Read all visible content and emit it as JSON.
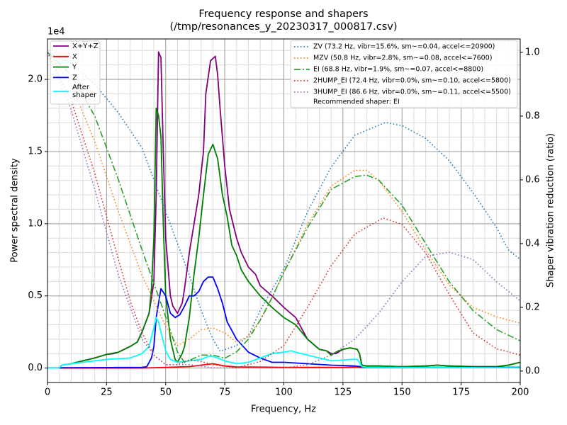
{
  "chart_data": {
    "type": "line",
    "title": "Frequency response and shapers",
    "subtitle": "(/tmp/resonances_y_20230317_000817.csv)",
    "x_label": "Frequency, Hz",
    "y_label": "Power spectral density",
    "y2_label": "Shaper vibration reduction (ratio)",
    "y_offset_label": "1e4",
    "xlim": [
      0,
      200
    ],
    "xticks": [
      0,
      25,
      50,
      75,
      100,
      125,
      150,
      175,
      200
    ],
    "ylim": [
      -1000,
      22800
    ],
    "yticks": [
      {
        "value": 0,
        "label": "0.0"
      },
      {
        "value": 5000,
        "label": "0.5"
      },
      {
        "value": 10000,
        "label": "1.0"
      },
      {
        "value": 15000,
        "label": "1.5"
      },
      {
        "value": 20000,
        "label": "2.0"
      }
    ],
    "y2lim": [
      -0.036,
      1.042
    ],
    "y2ticks": [
      {
        "value": 0,
        "label": "0.0"
      },
      0.2,
      0.4,
      0.6,
      0.8,
      {
        "value": 1,
        "label": "1.0"
      }
    ],
    "grid": true,
    "minor_grid": true,
    "legend_note": "Recommended shaper: EI",
    "series": [
      {
        "name": "X+Y+Z",
        "color": "#800080",
        "style": "solid",
        "x": [
          0,
          5,
          6,
          10,
          15,
          20,
          25,
          28,
          30,
          35,
          38,
          40,
          43,
          45,
          46,
          47,
          48,
          49,
          50,
          51,
          52,
          53,
          55,
          57,
          58,
          60,
          62,
          64,
          66,
          67,
          69,
          71,
          72,
          73,
          75,
          77,
          80,
          82,
          85,
          88,
          90,
          95,
          100,
          105,
          110,
          115,
          118,
          120,
          122,
          125,
          128,
          131,
          132,
          133,
          135,
          140,
          150,
          160,
          165,
          170,
          180,
          190,
          195,
          200
        ],
        "values": [
          0,
          0,
          200,
          300,
          500,
          700,
          950,
          1000,
          1100,
          1500,
          1800,
          2500,
          3800,
          6000,
          12000,
          21900,
          21500,
          15000,
          9000,
          7000,
          5000,
          4300,
          3800,
          4500,
          5500,
          8000,
          10000,
          12000,
          15000,
          19000,
          21300,
          21600,
          20300,
          18000,
          14000,
          11000,
          9000,
          8000,
          7000,
          6500,
          5700,
          5000,
          4200,
          3500,
          2000,
          1300,
          1200,
          1000,
          1000,
          1300,
          1400,
          1300,
          1000,
          200,
          150,
          150,
          100,
          150,
          200,
          150,
          100,
          100,
          200,
          400
        ]
      },
      {
        "name": "X",
        "color": "#ff0000",
        "style": "solid",
        "x": [
          0,
          40,
          50,
          60,
          65,
          70,
          75,
          80,
          100,
          125,
          130,
          135,
          200
        ],
        "values": [
          0,
          0,
          50,
          100,
          200,
          300,
          150,
          80,
          50,
          50,
          80,
          30,
          50
        ]
      },
      {
        "name": "Y",
        "color": "#008000",
        "style": "solid",
        "x": [
          0,
          5,
          6,
          10,
          15,
          20,
          25,
          30,
          35,
          38,
          40,
          43,
          44,
          45,
          46,
          47,
          48,
          49,
          50,
          52,
          54,
          55,
          57,
          58,
          60,
          62,
          64,
          66,
          68,
          70,
          72,
          74,
          76,
          78,
          80,
          82,
          85,
          90,
          95,
          100,
          105,
          110,
          115,
          118,
          120,
          122,
          125,
          128,
          131,
          132,
          133,
          135,
          140,
          150,
          160,
          165,
          170,
          180,
          190,
          195,
          200
        ],
        "values": [
          0,
          0,
          200,
          300,
          500,
          700,
          950,
          1100,
          1500,
          1800,
          2500,
          3800,
          5500,
          9000,
          18000,
          17500,
          16000,
          10000,
          5000,
          2000,
          600,
          400,
          1000,
          1500,
          3500,
          6500,
          9000,
          12000,
          14800,
          15500,
          14500,
          12000,
          10500,
          8500,
          7800,
          6800,
          6000,
          5000,
          4200,
          3500,
          3000,
          2000,
          1300,
          1200,
          900,
          1100,
          1300,
          1400,
          1300,
          1000,
          200,
          150,
          150,
          100,
          150,
          200,
          150,
          100,
          100,
          200,
          400
        ]
      },
      {
        "name": "Z",
        "color": "#0000ff",
        "style": "solid",
        "x": [
          0,
          5,
          6,
          40,
          42,
          44,
          45,
          46,
          47,
          48,
          50,
          52,
          54,
          56,
          58,
          60,
          62,
          64,
          66,
          68,
          70,
          72,
          74,
          76,
          80,
          85,
          90,
          95,
          100,
          110,
          120,
          130,
          135,
          200
        ],
        "values": [
          0,
          0,
          20,
          50,
          100,
          700,
          1500,
          3500,
          4500,
          5500,
          5000,
          3800,
          3500,
          3700,
          4300,
          5000,
          5000,
          5300,
          6000,
          6300,
          6300,
          5500,
          4500,
          3200,
          2000,
          1100,
          700,
          400,
          400,
          300,
          200,
          150,
          50,
          50
        ]
      },
      {
        "name": "After\nshaper",
        "color": "#00ffff",
        "style": "solid",
        "x": [
          0,
          5,
          6,
          10,
          15,
          20,
          25,
          30,
          35,
          40,
          43,
          45,
          46,
          47,
          48,
          50,
          52,
          55,
          60,
          65,
          68,
          70,
          72,
          75,
          80,
          85,
          90,
          95,
          100,
          103,
          105,
          110,
          115,
          120,
          125,
          128,
          131,
          132,
          133,
          135,
          140,
          200
        ],
        "values": [
          0,
          0,
          200,
          300,
          400,
          500,
          600,
          650,
          700,
          1000,
          1500,
          2800,
          3500,
          3200,
          2500,
          1200,
          600,
          400,
          500,
          600,
          800,
          800,
          700,
          500,
          300,
          400,
          700,
          1000,
          1100,
          1200,
          1100,
          900,
          700,
          500,
          550,
          600,
          600,
          400,
          100,
          50,
          50,
          20
        ]
      },
      {
        "name": "ZV (73.2 Hz, vibr=15.6%, sm~=0.04, accel<=20900)",
        "color": "#1f77b4",
        "style": "dotted",
        "axis": "y2",
        "x": [
          0,
          10,
          20,
          30,
          40,
          50,
          60,
          65,
          70,
          73,
          80,
          85,
          90,
          100,
          110,
          120,
          130,
          143,
          150,
          160,
          170,
          180,
          190,
          195,
          200
        ],
        "values": [
          1.0,
          0.965,
          0.9,
          0.81,
          0.7,
          0.5,
          0.3,
          0.19,
          0.1,
          0.062,
          0.08,
          0.11,
          0.19,
          0.32,
          0.5,
          0.64,
          0.74,
          0.78,
          0.77,
          0.73,
          0.66,
          0.56,
          0.45,
          0.38,
          0.35
        ]
      },
      {
        "name": "MZV (50.8 Hz, vibr=2.8%, sm~=0.08, accel<=7600)",
        "color": "#ff7f0e",
        "style": "dotted",
        "axis": "y2",
        "x": [
          0,
          10,
          20,
          30,
          40,
          50,
          55,
          60,
          65,
          70,
          75,
          80,
          85,
          90,
          95,
          100,
          110,
          120,
          130,
          135,
          140,
          150,
          160,
          170,
          180,
          190,
          200
        ],
        "values": [
          1.0,
          0.9,
          0.72,
          0.5,
          0.3,
          0.14,
          0.08,
          0.1,
          0.13,
          0.135,
          0.12,
          0.09,
          0.11,
          0.16,
          0.23,
          0.31,
          0.46,
          0.58,
          0.63,
          0.63,
          0.6,
          0.5,
          0.38,
          0.27,
          0.2,
          0.17,
          0.15
        ]
      },
      {
        "name": "EI (68.8 Hz, vibr=1.9%, sm~=0.07, accel<=8800)",
        "color": "#2ca02c",
        "style": "dashdot",
        "axis": "y2",
        "x": [
          0,
          10,
          20,
          30,
          40,
          50,
          55,
          58,
          62,
          65,
          70,
          75,
          80,
          85,
          90,
          95,
          100,
          110,
          120,
          130,
          135,
          140,
          150,
          160,
          170,
          180,
          190,
          200
        ],
        "values": [
          1.0,
          0.93,
          0.8,
          0.6,
          0.38,
          0.17,
          0.06,
          0.027,
          0.04,
          0.05,
          0.05,
          0.04,
          0.06,
          0.1,
          0.16,
          0.23,
          0.31,
          0.45,
          0.57,
          0.61,
          0.615,
          0.6,
          0.52,
          0.4,
          0.28,
          0.19,
          0.13,
          0.095
        ]
      },
      {
        "name": "2HUMP_EI (72.4 Hz, vibr=0.0%, sm~=0.10, accel<=5800)",
        "color": "#d62728",
        "style": "dotted",
        "axis": "y2",
        "x": [
          0,
          10,
          20,
          30,
          35,
          40,
          45,
          50,
          55,
          60,
          65,
          70,
          80,
          90,
          100,
          110,
          120,
          130,
          142,
          150,
          160,
          170,
          180,
          190,
          200
        ],
        "values": [
          1.0,
          0.85,
          0.62,
          0.35,
          0.22,
          0.12,
          0.05,
          0.02,
          0.02,
          0.035,
          0.03,
          0.02,
          0.01,
          0.03,
          0.08,
          0.2,
          0.33,
          0.43,
          0.48,
          0.46,
          0.37,
          0.24,
          0.12,
          0.07,
          0.05
        ]
      },
      {
        "name": "3HUMP_EI (86.6 Hz, vibr=0.0%, sm~=0.11, accel<=5500)",
        "color": "#9467bd",
        "style": "dotted",
        "axis": "y2",
        "x": [
          0,
          10,
          20,
          30,
          40,
          45,
          50,
          60,
          70,
          80,
          90,
          100,
          110,
          120,
          130,
          140,
          150,
          160,
          170,
          180,
          190,
          195,
          200
        ],
        "values": [
          1.0,
          0.82,
          0.57,
          0.3,
          0.1,
          0.05,
          0.02,
          0.02,
          0.01,
          0.01,
          0.01,
          0.01,
          0.02,
          0.05,
          0.1,
          0.18,
          0.28,
          0.36,
          0.373,
          0.35,
          0.28,
          0.25,
          0.22
        ]
      }
    ]
  }
}
